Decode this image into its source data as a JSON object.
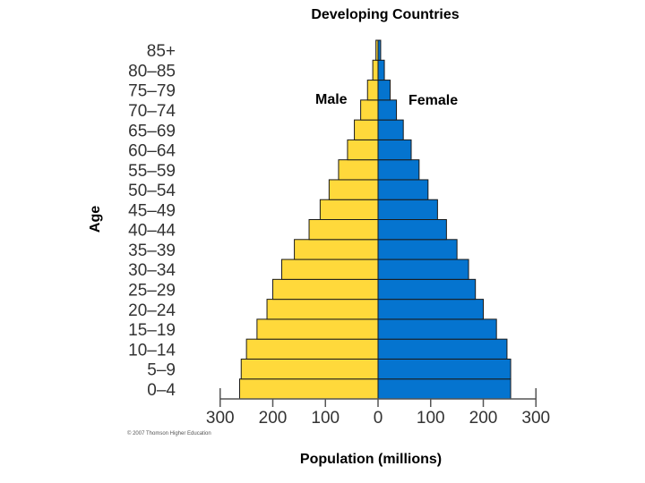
{
  "chart_data": {
    "type": "bar",
    "subtype": "population-pyramid",
    "title": "Developing Countries",
    "xlabel": "Population (millions)",
    "ylabel": "Age",
    "xlim": [
      -300,
      300
    ],
    "x_ticks": [
      {
        "value": -300,
        "label": "300"
      },
      {
        "value": -200,
        "label": "200"
      },
      {
        "value": -100,
        "label": "100"
      },
      {
        "value": 0,
        "label": "0"
      },
      {
        "value": 100,
        "label": "100"
      },
      {
        "value": 200,
        "label": "200"
      },
      {
        "value": 300,
        "label": "300"
      }
    ],
    "categories": [
      "0–4",
      "5–9",
      "10–14",
      "15–19",
      "20–24",
      "25–29",
      "30–34",
      "35–39",
      "40–44",
      "45–49",
      "50–54",
      "55–59",
      "60–64",
      "65–69",
      "70–74",
      "75–79",
      "80–85",
      "85+"
    ],
    "series": [
      {
        "name": "Male",
        "color": "#FFD93B",
        "values": [
          263,
          260,
          250,
          230,
          211,
          200,
          183,
          159,
          131,
          110,
          93,
          75,
          58,
          45,
          33,
          20,
          10,
          4
        ]
      },
      {
        "name": "Female",
        "color": "#0574CF",
        "values": [
          252,
          252,
          245,
          225,
          200,
          185,
          172,
          150,
          130,
          113,
          95,
          78,
          63,
          48,
          35,
          23,
          12,
          5
        ]
      }
    ],
    "legend": [
      "Male",
      "Female"
    ],
    "credit": "© 2007 Thomson Higher Education"
  }
}
